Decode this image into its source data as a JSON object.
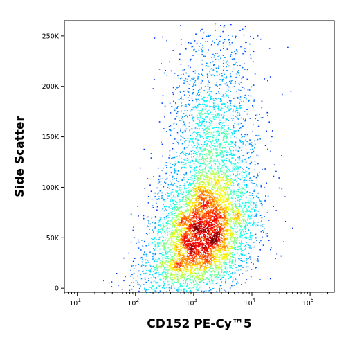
{
  "chart_data": {
    "type": "scatter",
    "title": "",
    "xlabel": "CD152 PE-Cy™5",
    "ylabel": "Side Scatter",
    "x_scale": "log",
    "xlim": [
      6,
      260000
    ],
    "ylim": [
      -4000,
      265000
    ],
    "x_ticks": [
      {
        "value": 10,
        "base": "10",
        "exp": "1"
      },
      {
        "value": 100,
        "base": "10",
        "exp": "2"
      },
      {
        "value": 1000,
        "base": "10",
        "exp": "3"
      },
      {
        "value": 10000,
        "base": "10",
        "exp": "4"
      },
      {
        "value": 100000,
        "base": "10",
        "exp": "5"
      }
    ],
    "y_ticks": [
      {
        "value": 0,
        "label": "0"
      },
      {
        "value": 50000,
        "label": "50K"
      },
      {
        "value": 100000,
        "label": "100K"
      },
      {
        "value": 150000,
        "label": "150K"
      },
      {
        "value": 200000,
        "label": "200K"
      },
      {
        "value": 250000,
        "label": "250K"
      }
    ],
    "grid": false,
    "legend": "none",
    "colormap": "jet (density)",
    "populations": [
      {
        "center_x": 1500,
        "center_y": 60000,
        "spread_log_x": 0.42,
        "spread_y": 30000,
        "weight": 0.62
      },
      {
        "center_x": 2000,
        "center_y": 150000,
        "spread_log_x": 0.38,
        "spread_y": 55000,
        "weight": 0.26
      },
      {
        "center_x": 800,
        "center_y": 25000,
        "spread_log_x": 0.55,
        "spread_y": 15000,
        "weight": 0.12
      }
    ]
  }
}
